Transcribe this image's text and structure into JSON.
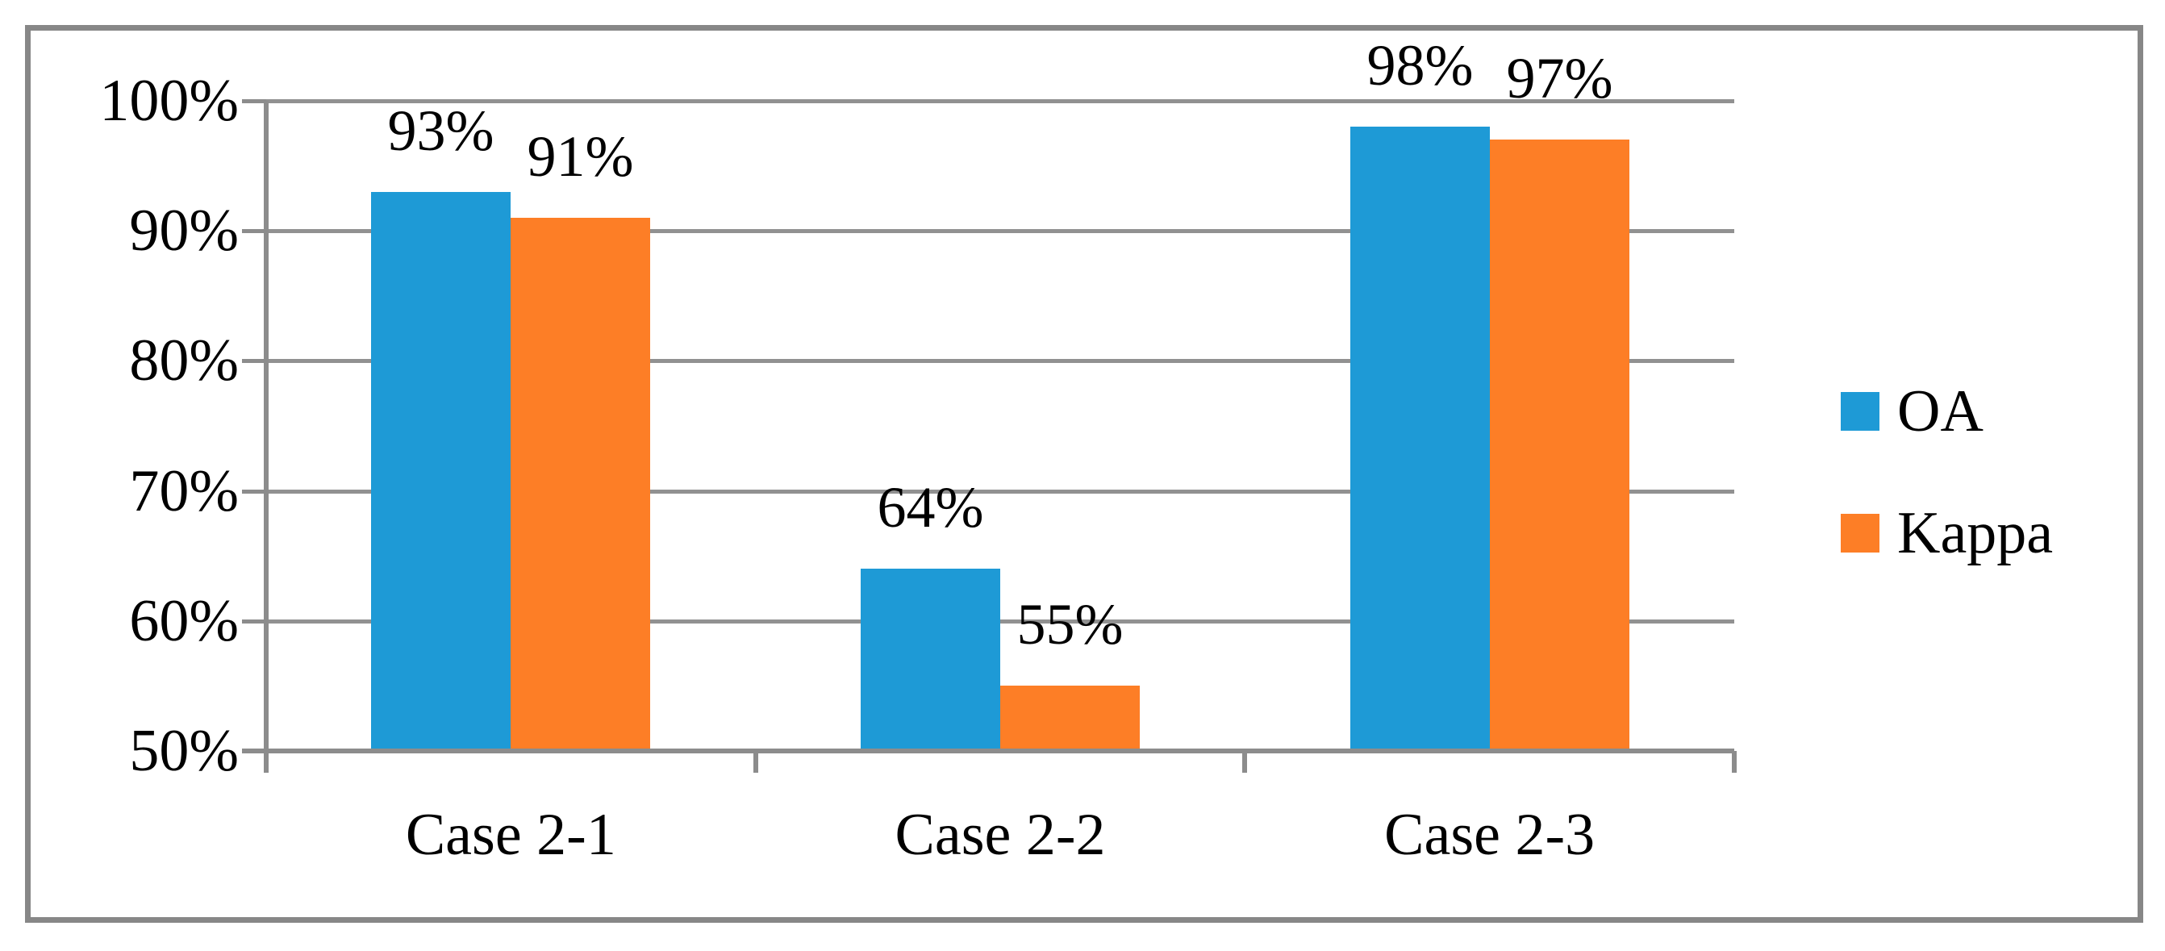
{
  "chart_data": {
    "type": "bar",
    "title": "",
    "xlabel": "",
    "ylabel": "",
    "categories": [
      "Case 2-1",
      "Case 2-2",
      "Case 2-3"
    ],
    "series": [
      {
        "name": "OA",
        "color": "#1e9ad6",
        "values": [
          93,
          64,
          98
        ],
        "data_labels": [
          "93%",
          "64%",
          "98%"
        ]
      },
      {
        "name": "Kappa",
        "color": "#fd7e26",
        "values": [
          91,
          55,
          97
        ],
        "data_labels": [
          "91%",
          "55%",
          "97%"
        ]
      }
    ],
    "ylim": [
      50,
      100
    ],
    "ytick_step": 10,
    "ytick_labels": [
      "100%",
      "90%",
      "80%",
      "70%",
      "60%",
      "50%"
    ],
    "grid": "horizontal-major",
    "legend_position": "right-middle",
    "legend_entries": [
      "OA",
      "Kappa"
    ]
  },
  "colors": {
    "series_oa": "#1e9ad6",
    "series_kappa": "#fd7e26",
    "gridline": "#919191",
    "axis": "#8c8c8c",
    "frame_border": "#878787",
    "background": "#ffffff",
    "text": "#000000"
  }
}
